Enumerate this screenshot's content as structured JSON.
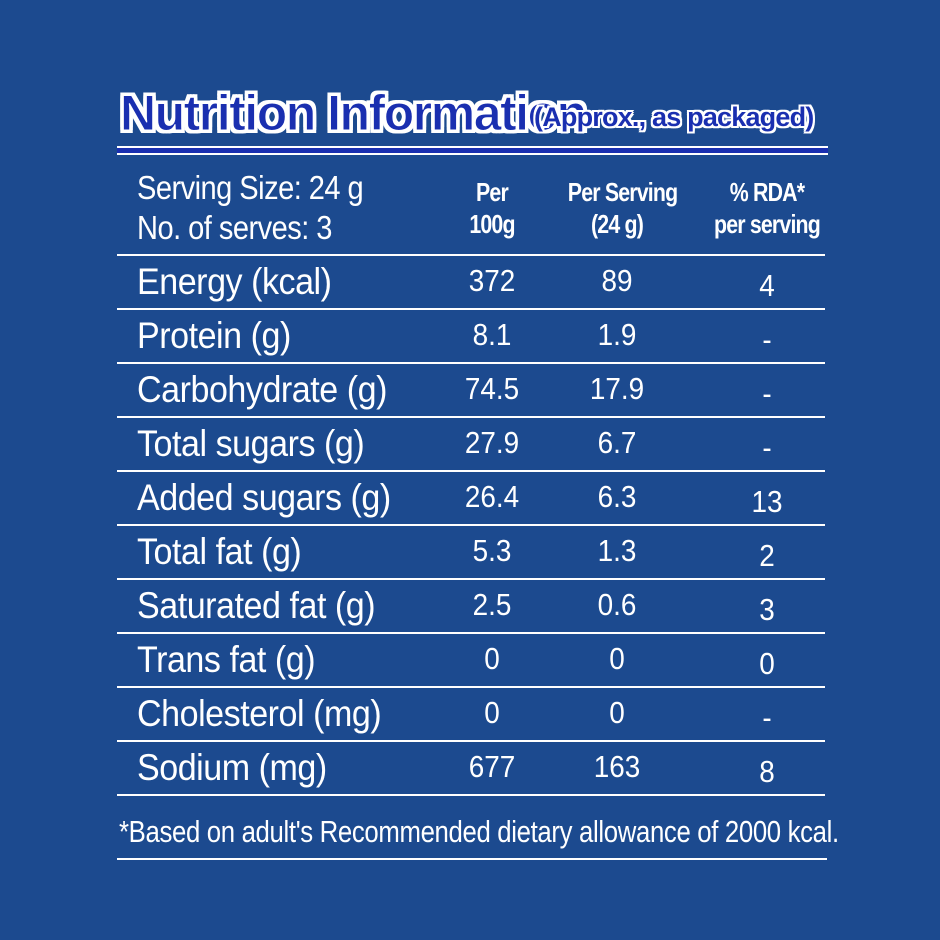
{
  "colors": {
    "background": "#1c4a8f",
    "title_fill": "#1a2fb0",
    "text": "#ffffff"
  },
  "title": {
    "main": "Nutrition Information",
    "sub": "(Approx., as packaged)"
  },
  "header": {
    "serving_size": "Serving Size: 24 g",
    "serves": "No. of serves: 3",
    "col1_line1": "Per",
    "col1_line2": "100g",
    "col2_line1": "Per Serving",
    "col2_line2": "(24 g)",
    "col3_line1": "% RDA*",
    "col3_line2": "per serving"
  },
  "rows": [
    {
      "label": "Energy (kcal)",
      "per100": "372",
      "perServing": "89",
      "rda": "4"
    },
    {
      "label": "Protein (g)",
      "per100": "8.1",
      "perServing": "1.9",
      "rda": "-"
    },
    {
      "label": "Carbohydrate (g)",
      "per100": "74.5",
      "perServing": "17.9",
      "rda": "-"
    },
    {
      "label": "Total sugars (g)",
      "per100": "27.9",
      "perServing": "6.7",
      "rda": "-"
    },
    {
      "label": "Added sugars (g)",
      "per100": "26.4",
      "perServing": "6.3",
      "rda": "13"
    },
    {
      "label": "Total fat (g)",
      "per100": "5.3",
      "perServing": "1.3",
      "rda": "2"
    },
    {
      "label": "Saturated fat (g)",
      "per100": "2.5",
      "perServing": "0.6",
      "rda": "3"
    },
    {
      "label": "Trans fat (g)",
      "per100": "0",
      "perServing": "0",
      "rda": "0"
    },
    {
      "label": "Cholesterol (mg)",
      "per100": "0",
      "perServing": "0",
      "rda": "-"
    },
    {
      "label": "Sodium (mg)",
      "per100": "677",
      "perServing": "163",
      "rda": "8"
    }
  ],
  "footnote": "*Based on adult's Recommended dietary allowance of 2000 kcal."
}
